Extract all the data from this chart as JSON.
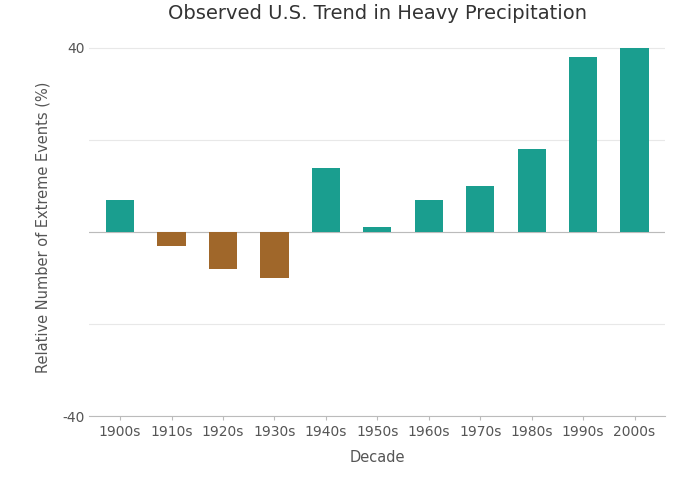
{
  "categories": [
    "1900s",
    "1910s",
    "1920s",
    "1930s",
    "1940s",
    "1950s",
    "1960s",
    "1970s",
    "1980s",
    "1990s",
    "2000s"
  ],
  "values": [
    7,
    -3,
    -8,
    -10,
    14,
    1,
    7,
    10,
    18,
    38,
    40
  ],
  "bar_colors_positive": "#1a9e8f",
  "bar_colors_negative": "#a0672a",
  "title": "Observed U.S. Trend in Heavy Precipitation",
  "xlabel": "Decade",
  "ylabel": "Relative Number of Extreme Events (%)",
  "ylim": [
    -40,
    42
  ],
  "yticks": [
    -40,
    -20,
    0,
    20,
    40
  ],
  "ytick_labels_show": [
    -40,
    40
  ],
  "background_color": "#ffffff",
  "grid_color": "#e8e8e8",
  "title_fontsize": 14,
  "label_fontsize": 10.5,
  "tick_fontsize": 10
}
